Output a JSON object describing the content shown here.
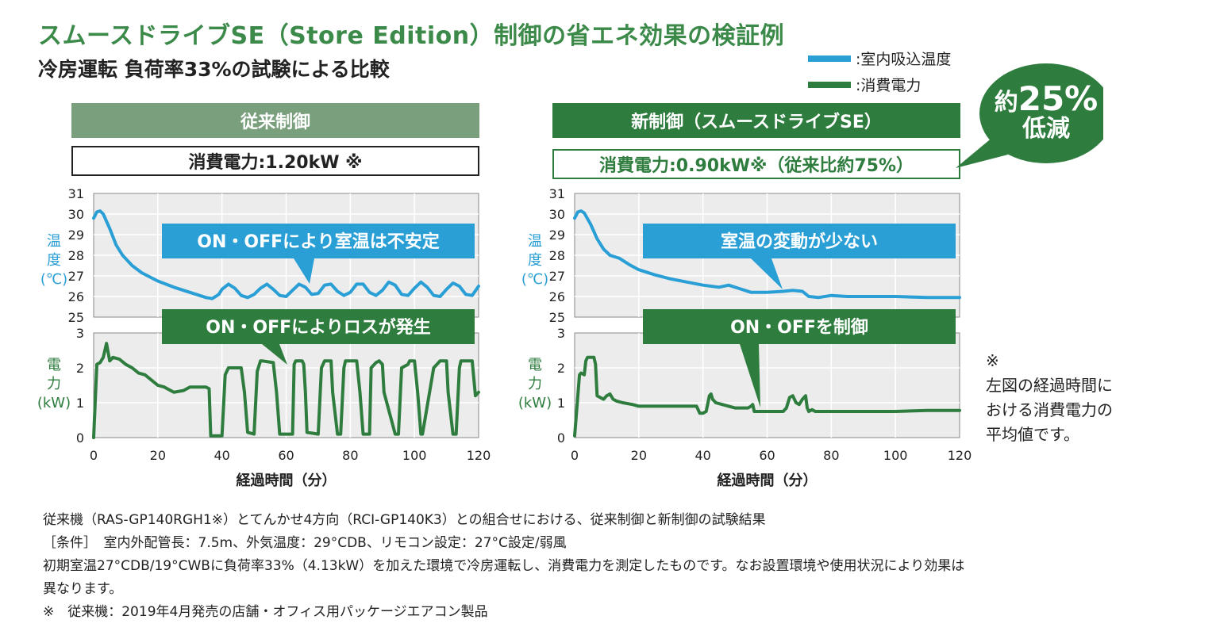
{
  "header": {
    "title": "スムースドライブSE（Store Edition）制御の省エネ効果の検証例",
    "subtitle": "冷房運転 負荷率33%の試験による比較"
  },
  "legend": [
    {
      "label": ":室内吸込温度",
      "color": "#2a9fd6"
    },
    {
      "label": ":消費電力",
      "color": "#2e7d3e"
    }
  ],
  "bubble": {
    "line1_prefix": "約",
    "line1_value": "25%",
    "line2": "低減"
  },
  "panels": [
    {
      "header": "従来制御",
      "header_color": "#7a9f7c",
      "power_label": "消費電力:1.20kW ※",
      "temp_annotation": "ON・OFFにより室温は不安定",
      "power_annotation": "ON・OFFによりロスが発生"
    },
    {
      "header": "新制御（スムースドライブSE）",
      "header_color": "#2e7d3e",
      "power_label": "消費電力:0.90kW※（従来比約75%）",
      "temp_annotation": "室温の変動が少ない",
      "power_annotation": "ON・OFFを制御"
    }
  ],
  "axis_labels": {
    "temp_y": [
      "温",
      "度",
      "(℃)"
    ],
    "power_y": [
      "電",
      "力",
      "(kW)"
    ],
    "x": "経過時間（分）"
  },
  "footnote": [
    "※",
    "左図の経過時間に",
    "おける消費電力の",
    "平均値です。"
  ],
  "notes": [
    "従来機（RAS-GP140RGH1※）とてんかせ4方向（RCI-GP140K3）との組合せにおける、従来制御と新制御の試験結果",
    "［条件］　室内外配管長：7.5m、外気温度：29°CDB、リモコン設定：27°C設定/弱風",
    "初期室温27°CDB/19°CWBに負荷率33%（4.13kW）を加えた環境で冷房運転し、消費電力を測定したものです。なお設置環境や使用状況により効果は",
    "異なります。",
    "※　従来機：2019年4月発売の店舗・オフィス用パッケージエアコン製品"
  ],
  "chart_data": [
    {
      "type": "line",
      "title": "従来制御",
      "xlabel": "経過時間（分）",
      "x_ticks": [
        0,
        20,
        40,
        60,
        80,
        100,
        120
      ],
      "xlim": [
        0,
        120
      ],
      "temperature": {
        "name": ":室内吸込温度",
        "ylabel": "温度(℃)",
        "ylim": [
          25,
          31
        ],
        "y_ticks": [
          25,
          26,
          27,
          28,
          29,
          30,
          31
        ],
        "color": "#2a9fd6",
        "x": [
          0,
          1,
          2,
          3,
          5,
          7,
          9,
          12,
          15,
          20,
          25,
          30,
          33,
          35,
          37,
          39,
          40,
          42,
          44,
          46,
          48,
          50,
          52,
          54,
          56,
          58,
          60,
          62,
          64,
          66,
          68,
          70,
          72,
          74,
          76,
          78,
          80,
          82,
          84,
          86,
          88,
          90,
          92,
          94,
          96,
          98,
          100,
          102,
          104,
          106,
          108,
          110,
          112,
          114,
          116,
          118,
          120
        ],
        "y": [
          29.8,
          30.1,
          30.15,
          30.0,
          29.3,
          28.5,
          28.0,
          27.5,
          27.15,
          26.75,
          26.45,
          26.2,
          26.05,
          25.95,
          25.9,
          26.1,
          26.35,
          26.6,
          26.4,
          26.05,
          25.95,
          26.1,
          26.4,
          26.6,
          26.35,
          26.05,
          26.0,
          26.3,
          26.6,
          26.45,
          26.1,
          26.15,
          26.55,
          26.6,
          26.25,
          26.05,
          26.2,
          26.6,
          26.6,
          26.2,
          26.05,
          26.3,
          26.7,
          26.55,
          26.1,
          26.05,
          26.4,
          26.7,
          26.45,
          26.05,
          26.0,
          26.35,
          26.65,
          26.5,
          26.1,
          26.05,
          26.5
        ]
      },
      "power": {
        "name": ":消費電力",
        "ylabel": "電力(kW)",
        "ylim": [
          0,
          3
        ],
        "y_ticks": [
          0,
          1,
          2,
          3
        ],
        "color": "#2e7d3e",
        "x": [
          0,
          1,
          2,
          3,
          4,
          5,
          6,
          8,
          10,
          12,
          14,
          16,
          18,
          20,
          22,
          25,
          28,
          30,
          32,
          35,
          36,
          36.5,
          40,
          41,
          42,
          46,
          47,
          48,
          50,
          51,
          52,
          52.5,
          56,
          57,
          58,
          62,
          62.5,
          63,
          65,
          65.5,
          66,
          66.5,
          70,
          71,
          72,
          74,
          74.5,
          76,
          77,
          78,
          78.5,
          82,
          83,
          84,
          86,
          86.5,
          88,
          89,
          90,
          90.5,
          94,
          95,
          96,
          98,
          98.5,
          100,
          101,
          102,
          102.5,
          106,
          107,
          108,
          110,
          110.5,
          112,
          113,
          114,
          114.5,
          118,
          119,
          120
        ],
        "y": [
          0.0,
          2.1,
          2.15,
          2.3,
          2.7,
          2.2,
          2.3,
          2.25,
          2.1,
          2.0,
          1.85,
          1.8,
          1.65,
          1.5,
          1.45,
          1.3,
          1.35,
          1.45,
          1.45,
          1.45,
          1.4,
          0.05,
          0.05,
          1.8,
          2.0,
          2.0,
          1.3,
          0.15,
          0.1,
          1.9,
          2.2,
          2.2,
          2.15,
          1.3,
          0.1,
          0.1,
          2.1,
          2.2,
          2.2,
          2.1,
          1.3,
          0.15,
          0.1,
          2.0,
          2.2,
          2.2,
          1.3,
          0.1,
          0.1,
          2.0,
          2.2,
          2.2,
          1.3,
          0.1,
          0.1,
          2.0,
          2.15,
          2.2,
          2.1,
          1.3,
          0.1,
          0.1,
          2.0,
          2.1,
          2.2,
          2.2,
          1.3,
          0.1,
          0.1,
          2.0,
          2.1,
          2.2,
          2.2,
          1.3,
          0.1,
          0.1,
          2.0,
          2.2,
          2.2,
          1.2,
          1.3
        ]
      }
    },
    {
      "type": "line",
      "title": "新制御（スムースドライブSE）",
      "xlabel": "経過時間（分）",
      "x_ticks": [
        0,
        20,
        40,
        60,
        80,
        100,
        120
      ],
      "xlim": [
        0,
        120
      ],
      "temperature": {
        "name": ":室内吸込温度",
        "ylabel": "温度(℃)",
        "ylim": [
          25,
          31
        ],
        "y_ticks": [
          25,
          26,
          27,
          28,
          29,
          30,
          31
        ],
        "color": "#2a9fd6",
        "x": [
          0,
          1,
          2,
          3,
          5,
          7,
          9,
          11,
          14,
          17,
          20,
          25,
          30,
          35,
          40,
          45,
          48,
          52,
          55,
          60,
          65,
          68,
          71,
          73,
          76,
          80,
          85,
          90,
          100,
          110,
          120
        ],
        "y": [
          29.8,
          30.1,
          30.15,
          30.05,
          29.5,
          28.8,
          28.3,
          28.0,
          27.85,
          27.55,
          27.3,
          27.05,
          26.85,
          26.7,
          26.55,
          26.45,
          26.55,
          26.35,
          26.2,
          26.2,
          26.25,
          26.3,
          26.25,
          26.0,
          25.95,
          26.05,
          26.0,
          26.0,
          26.0,
          25.95,
          25.95
        ]
      },
      "power": {
        "name": ":消費電力",
        "ylabel": "電力(kW)",
        "ylim": [
          0,
          3
        ],
        "y_ticks": [
          0,
          1,
          2,
          3
        ],
        "color": "#2e7d3e",
        "x": [
          0,
          1.5,
          2,
          3,
          3.5,
          4,
          5,
          6,
          6.5,
          7,
          9,
          10,
          11,
          12,
          13,
          15,
          18,
          20,
          25,
          30,
          35,
          38,
          39,
          40,
          41,
          42,
          42.5,
          43,
          44,
          46,
          48,
          50,
          54,
          55,
          55.5,
          56,
          58,
          60,
          65,
          66,
          67,
          68,
          69,
          70,
          71,
          72,
          72.5,
          73,
          74,
          75,
          76,
          80,
          90,
          100,
          110,
          120
        ],
        "y": [
          0.05,
          1.8,
          1.85,
          1.8,
          2.2,
          2.3,
          2.3,
          2.3,
          2.1,
          1.2,
          1.1,
          1.2,
          1.25,
          1.1,
          1.05,
          1.0,
          0.95,
          0.9,
          0.9,
          0.9,
          0.9,
          0.9,
          0.7,
          0.7,
          0.75,
          1.2,
          1.25,
          1.1,
          1.0,
          0.95,
          0.9,
          0.85,
          0.85,
          0.9,
          0.95,
          0.75,
          0.75,
          0.75,
          0.75,
          0.85,
          1.15,
          1.2,
          1.0,
          0.95,
          1.1,
          1.2,
          0.85,
          0.75,
          0.8,
          0.75,
          0.75,
          0.75,
          0.75,
          0.75,
          0.78,
          0.78
        ]
      }
    }
  ]
}
